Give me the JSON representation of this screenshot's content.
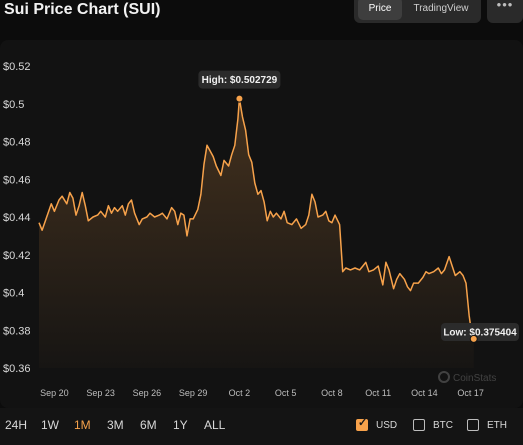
{
  "header": {
    "title": "Sui Price Chart (SUI)",
    "tabs": [
      {
        "label": "Price",
        "active": true
      },
      {
        "label": "TradingView",
        "active": false
      }
    ],
    "more_label": "•••"
  },
  "footer": {
    "ranges": [
      {
        "label": "24H",
        "active": false
      },
      {
        "label": "1W",
        "active": false
      },
      {
        "label": "1M",
        "active": true
      },
      {
        "label": "3M",
        "active": false
      },
      {
        "label": "6M",
        "active": false
      },
      {
        "label": "1Y",
        "active": false
      },
      {
        "label": "ALL",
        "active": false
      }
    ],
    "currencies": [
      {
        "label": "USD",
        "checked": true
      },
      {
        "label": "BTC",
        "checked": false
      },
      {
        "label": "ETH",
        "checked": false
      }
    ]
  },
  "watermark": "CoinStats",
  "colors": {
    "accent": "#f7a24b",
    "background": "#0c0c0c",
    "panel": "#121212"
  },
  "chart_data": {
    "type": "area",
    "title": "Sui Price Chart (SUI)",
    "ylim": [
      0.36,
      0.52
    ],
    "y_ticks": [
      {
        "value": 0.52,
        "label": "$0.52"
      },
      {
        "value": 0.5,
        "label": "$0.5"
      },
      {
        "value": 0.48,
        "label": "$0.48"
      },
      {
        "value": 0.46,
        "label": "$0.46"
      },
      {
        "value": 0.44,
        "label": "$0.44"
      },
      {
        "value": 0.42,
        "label": "$0.42"
      },
      {
        "value": 0.4,
        "label": "$0.4"
      },
      {
        "value": 0.38,
        "label": "$0.38"
      },
      {
        "value": 0.36,
        "label": "$0.36"
      }
    ],
    "x_range": [
      0,
      31.2
    ],
    "x_ticks": [
      {
        "day": 1,
        "label": "Sep 20"
      },
      {
        "day": 4,
        "label": "Sep 23"
      },
      {
        "day": 7,
        "label": "Sep 26"
      },
      {
        "day": 10,
        "label": "Sep 29"
      },
      {
        "day": 13,
        "label": "Oct 2"
      },
      {
        "day": 16,
        "label": "Oct 5"
      },
      {
        "day": 19,
        "label": "Oct 8"
      },
      {
        "day": 22,
        "label": "Oct 11"
      },
      {
        "day": 25,
        "label": "Oct 14"
      },
      {
        "day": 28,
        "label": "Oct 17"
      }
    ],
    "series": [
      {
        "values": [
          [
            0.0,
            0.437
          ],
          [
            0.2,
            0.433
          ],
          [
            0.5,
            0.44
          ],
          [
            0.8,
            0.447
          ],
          [
            1.0,
            0.443
          ],
          [
            1.3,
            0.449
          ],
          [
            1.5,
            0.451
          ],
          [
            1.8,
            0.447
          ],
          [
            2.0,
            0.453
          ],
          [
            2.2,
            0.45
          ],
          [
            2.4,
            0.441
          ],
          [
            2.6,
            0.446
          ],
          [
            2.8,
            0.453
          ],
          [
            3.0,
            0.446
          ],
          [
            3.2,
            0.438
          ],
          [
            3.5,
            0.44
          ],
          [
            3.8,
            0.441
          ],
          [
            4.0,
            0.443
          ],
          [
            4.3,
            0.44
          ],
          [
            4.5,
            0.446
          ],
          [
            4.7,
            0.442
          ],
          [
            4.9,
            0.445
          ],
          [
            5.1,
            0.443
          ],
          [
            5.4,
            0.446
          ],
          [
            5.6,
            0.441
          ],
          [
            5.8,
            0.447
          ],
          [
            6.0,
            0.449
          ],
          [
            6.2,
            0.442
          ],
          [
            6.5,
            0.436
          ],
          [
            6.7,
            0.439
          ],
          [
            7.0,
            0.44
          ],
          [
            7.2,
            0.442
          ],
          [
            7.5,
            0.44
          ],
          [
            7.8,
            0.441
          ],
          [
            8.0,
            0.442
          ],
          [
            8.3,
            0.439
          ],
          [
            8.6,
            0.445
          ],
          [
            8.8,
            0.443
          ],
          [
            9.0,
            0.436
          ],
          [
            9.2,
            0.442
          ],
          [
            9.4,
            0.441
          ],
          [
            9.6,
            0.43
          ],
          [
            9.8,
            0.439
          ],
          [
            10.0,
            0.439
          ],
          [
            10.3,
            0.444
          ],
          [
            10.5,
            0.452
          ],
          [
            10.7,
            0.468
          ],
          [
            10.9,
            0.478
          ],
          [
            11.1,
            0.475
          ],
          [
            11.3,
            0.472
          ],
          [
            11.5,
            0.467
          ],
          [
            11.8,
            0.462
          ],
          [
            12.0,
            0.47
          ],
          [
            12.3,
            0.467
          ],
          [
            12.5,
            0.473
          ],
          [
            12.7,
            0.478
          ],
          [
            12.9,
            0.492
          ],
          [
            13.0,
            0.502729
          ],
          [
            13.2,
            0.493
          ],
          [
            13.4,
            0.486
          ],
          [
            13.6,
            0.473
          ],
          [
            13.8,
            0.469
          ],
          [
            14.0,
            0.458
          ],
          [
            14.2,
            0.452
          ],
          [
            14.4,
            0.454
          ],
          [
            14.6,
            0.448
          ],
          [
            14.8,
            0.438
          ],
          [
            15.0,
            0.443
          ],
          [
            15.2,
            0.44
          ],
          [
            15.4,
            0.442
          ],
          [
            15.7,
            0.439
          ],
          [
            15.9,
            0.443
          ],
          [
            16.1,
            0.437
          ],
          [
            16.4,
            0.436
          ],
          [
            16.7,
            0.439
          ],
          [
            17.0,
            0.434
          ],
          [
            17.3,
            0.436
          ],
          [
            17.5,
            0.441
          ],
          [
            17.7,
            0.452
          ],
          [
            17.9,
            0.448
          ],
          [
            18.1,
            0.44
          ],
          [
            18.4,
            0.441
          ],
          [
            18.6,
            0.443
          ],
          [
            18.8,
            0.438
          ],
          [
            19.0,
            0.437
          ],
          [
            19.2,
            0.441
          ],
          [
            19.5,
            0.436
          ],
          [
            19.7,
            0.411
          ],
          [
            19.9,
            0.413
          ],
          [
            20.2,
            0.412
          ],
          [
            20.5,
            0.413
          ],
          [
            20.8,
            0.412
          ],
          [
            21.0,
            0.414
          ],
          [
            21.2,
            0.416
          ],
          [
            21.4,
            0.411
          ],
          [
            21.7,
            0.412
          ],
          [
            22.0,
            0.414
          ],
          [
            22.3,
            0.404
          ],
          [
            22.5,
            0.416
          ],
          [
            22.7,
            0.412
          ],
          [
            23.0,
            0.402
          ],
          [
            23.2,
            0.407
          ],
          [
            23.4,
            0.41
          ],
          [
            23.7,
            0.407
          ],
          [
            23.9,
            0.403
          ],
          [
            24.1,
            0.401
          ],
          [
            24.3,
            0.405
          ],
          [
            24.6,
            0.405
          ],
          [
            24.9,
            0.408
          ],
          [
            25.1,
            0.411
          ],
          [
            25.3,
            0.41
          ],
          [
            25.6,
            0.411
          ],
          [
            25.9,
            0.413
          ],
          [
            26.1,
            0.41
          ],
          [
            26.3,
            0.412
          ],
          [
            26.6,
            0.419
          ],
          [
            26.8,
            0.414
          ],
          [
            27.0,
            0.409
          ],
          [
            27.3,
            0.411
          ],
          [
            27.5,
            0.409
          ],
          [
            27.7,
            0.405
          ],
          [
            27.9,
            0.388
          ],
          [
            28.1,
            0.376
          ],
          [
            28.2,
            0.375404
          ]
        ]
      }
    ],
    "annotations": {
      "high": {
        "label": "High: $0.502729",
        "day": 13.0,
        "value": 0.502729
      },
      "low": {
        "label": "Low: $0.375404",
        "day": 28.2,
        "value": 0.375404
      }
    },
    "grid": false,
    "legend": "none"
  }
}
